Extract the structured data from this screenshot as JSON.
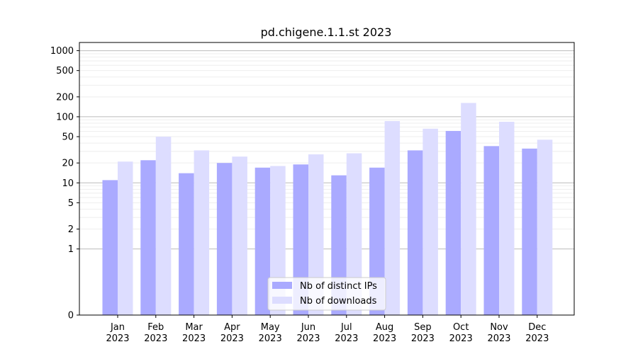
{
  "chart_data": {
    "type": "bar",
    "title": "pd.chigene.1.1.st 2023",
    "xlabel": "",
    "ylabel": "",
    "y_scale": "symlog",
    "grid": true,
    "legend_position": "lower-center",
    "categories": [
      [
        "Jan",
        "2023"
      ],
      [
        "Feb",
        "2023"
      ],
      [
        "Mar",
        "2023"
      ],
      [
        "Apr",
        "2023"
      ],
      [
        "May",
        "2023"
      ],
      [
        "Jun",
        "2023"
      ],
      [
        "Jul",
        "2023"
      ],
      [
        "Aug",
        "2023"
      ],
      [
        "Sep",
        "2023"
      ],
      [
        "Oct",
        "2023"
      ],
      [
        "Nov",
        "2023"
      ],
      [
        "Dec",
        "2023"
      ]
    ],
    "y_ticks": [
      0,
      1,
      2,
      5,
      10,
      20,
      50,
      100,
      200,
      500,
      1000
    ],
    "y_tick_labels": [
      "0",
      "1",
      "2",
      "5",
      "10",
      "20",
      "50",
      "100",
      "200",
      "500",
      "1000"
    ],
    "series": [
      {
        "name": "Nb of distinct IPs",
        "color": "#aaaaff",
        "values": [
          11,
          22,
          14,
          20,
          17,
          19,
          13,
          17,
          31,
          61,
          36,
          33
        ]
      },
      {
        "name": "Nb of downloads",
        "color": "#ddddff",
        "values": [
          21,
          50,
          31,
          25,
          18,
          27,
          28,
          86,
          66,
          162,
          84,
          45
        ]
      }
    ]
  }
}
